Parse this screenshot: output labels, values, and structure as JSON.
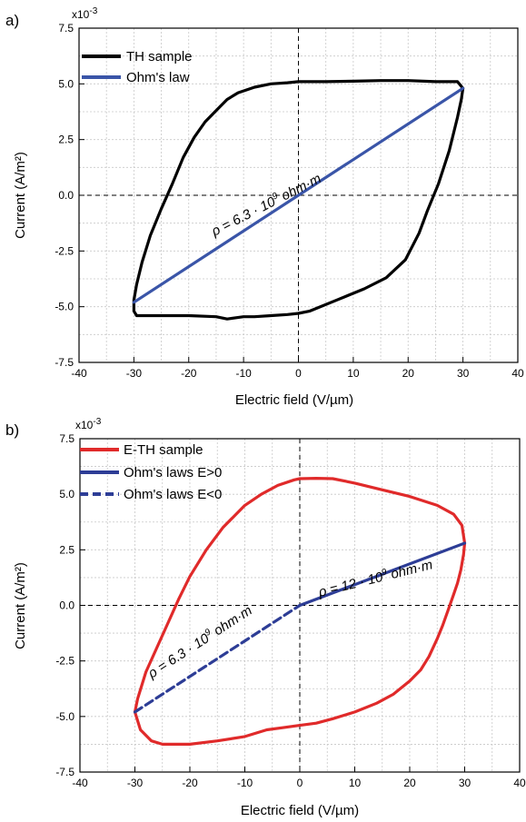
{
  "chart_data": [
    {
      "panel_label": "a)",
      "type": "line",
      "exponent_label": "x10",
      "exponent_sup": "-3",
      "xlabel": "Electric field (V/µm)",
      "ylabel": "Current (A/m²)",
      "xlim": [
        -40,
        40
      ],
      "ylim": [
        -7.5,
        7.5
      ],
      "xticks": [
        -40,
        -30,
        -20,
        -10,
        0,
        10,
        20,
        30,
        40
      ],
      "xtick_labels": [
        "-40",
        "-30",
        "-20",
        "-10",
        "0",
        "10",
        "20",
        "30",
        "40"
      ],
      "yticks": [
        -7.5,
        -5.0,
        -2.5,
        0.0,
        2.5,
        5.0,
        7.5
      ],
      "ytick_labels": [
        "-7.5",
        "-5.0",
        "-2.5",
        "0.0",
        "2.5",
        "5.0",
        "7.5"
      ],
      "grid": true,
      "legend_position": "top-left",
      "series": [
        {
          "name": "TH sample",
          "color": "#000000",
          "style": "solid",
          "x": [
            30,
            29.7,
            29,
            27.5,
            25.5,
            23.5,
            22,
            19.5,
            16,
            12,
            7,
            2,
            0,
            -2,
            -5,
            -8,
            -10,
            -13,
            -15,
            -20,
            -23,
            -25,
            -28,
            -29.5,
            -30,
            -30,
            -29.5,
            -28.5,
            -27,
            -25,
            -23,
            -21,
            -19,
            -17,
            -15,
            -13,
            -11,
            -8,
            -5,
            -2,
            0,
            2,
            5,
            10,
            15,
            20,
            25,
            29,
            30
          ],
          "y": [
            4.8,
            4.3,
            3.5,
            2.0,
            0.5,
            -0.7,
            -1.7,
            -2.9,
            -3.7,
            -4.2,
            -4.7,
            -5.2,
            -5.3,
            -5.35,
            -5.4,
            -5.45,
            -5.45,
            -5.55,
            -5.45,
            -5.4,
            -5.4,
            -5.4,
            -5.4,
            -5.4,
            -5.2,
            -4.7,
            -4.0,
            -3.0,
            -1.8,
            -0.6,
            0.5,
            1.7,
            2.6,
            3.3,
            3.8,
            4.3,
            4.6,
            4.85,
            5.0,
            5.05,
            5.1,
            5.1,
            5.1,
            5.12,
            5.15,
            5.15,
            5.1,
            5.1,
            4.8
          ]
        },
        {
          "name": "Ohm's law",
          "color": "#3a55a8",
          "style": "solid",
          "x": [
            -30,
            30
          ],
          "y": [
            -4.8,
            4.8
          ]
        }
      ],
      "annotations": [
        {
          "text_pre": "ρ = 6.3 · 10",
          "text_sup": "9",
          "text_post": " ohm·m"
        }
      ]
    },
    {
      "panel_label": "b)",
      "type": "line",
      "exponent_label": "x10",
      "exponent_sup": "-3",
      "xlabel": "Electric field (V/µm)",
      "ylabel": "Current (A/m²)",
      "xlim": [
        -40,
        40
      ],
      "ylim": [
        -7.5,
        7.5
      ],
      "xticks": [
        -40,
        -30,
        -20,
        -10,
        0,
        10,
        20,
        30,
        40
      ],
      "xtick_labels": [
        "-40",
        "-30",
        "-20",
        "-10",
        "0",
        "10",
        "20",
        "30",
        "40"
      ],
      "yticks": [
        -7.5,
        -5.0,
        -2.5,
        0.0,
        2.5,
        5.0,
        7.5
      ],
      "ytick_labels": [
        "-7.5",
        "-5.0",
        "-2.5",
        "0.0",
        "2.5",
        "5.0",
        "7.5"
      ],
      "grid": true,
      "legend_position": "top-left",
      "series": [
        {
          "name": "E-TH sample",
          "color": "#e02a2a",
          "style": "solid",
          "x": [
            30,
            29.8,
            29.3,
            28.7,
            28,
            27,
            26,
            25,
            23.5,
            22,
            20,
            17,
            14,
            10,
            6,
            3,
            0,
            -3,
            -6,
            -10,
            -15,
            -20,
            -25,
            -27,
            -29,
            -30,
            -29.5,
            -28,
            -26,
            -24,
            -22,
            -20,
            -17,
            -14,
            -10,
            -7,
            -4,
            -1,
            0,
            3,
            6,
            10,
            15,
            20,
            25,
            28,
            29.5,
            30
          ],
          "y": [
            2.8,
            2.3,
            1.6,
            1.0,
            0.5,
            -0.2,
            -0.9,
            -1.5,
            -2.3,
            -2.9,
            -3.4,
            -4.0,
            -4.4,
            -4.8,
            -5.1,
            -5.3,
            -5.4,
            -5.5,
            -5.6,
            -5.9,
            -6.1,
            -6.25,
            -6.25,
            -6.1,
            -5.6,
            -4.8,
            -4.2,
            -3.0,
            -1.9,
            -0.8,
            0.3,
            1.3,
            2.5,
            3.5,
            4.5,
            5.0,
            5.4,
            5.65,
            5.7,
            5.72,
            5.7,
            5.5,
            5.2,
            4.9,
            4.5,
            4.1,
            3.6,
            2.8
          ]
        },
        {
          "name": "Ohm's laws E>0",
          "color": "#2d3d96",
          "style": "solid",
          "x": [
            0,
            30
          ],
          "y": [
            0,
            2.8
          ]
        },
        {
          "name": "Ohm's laws E<0",
          "color": "#2d3d96",
          "style": "dashed",
          "x": [
            -30,
            0
          ],
          "y": [
            -4.8,
            0
          ]
        }
      ],
      "annotations": [
        {
          "text_pre": "ρ = 12 · 10",
          "text_sup": "9",
          "text_post": " ohm·m"
        },
        {
          "text_pre": "ρ = 6.3 · 10",
          "text_sup": "9",
          "text_post": " ohm·m"
        }
      ]
    }
  ]
}
